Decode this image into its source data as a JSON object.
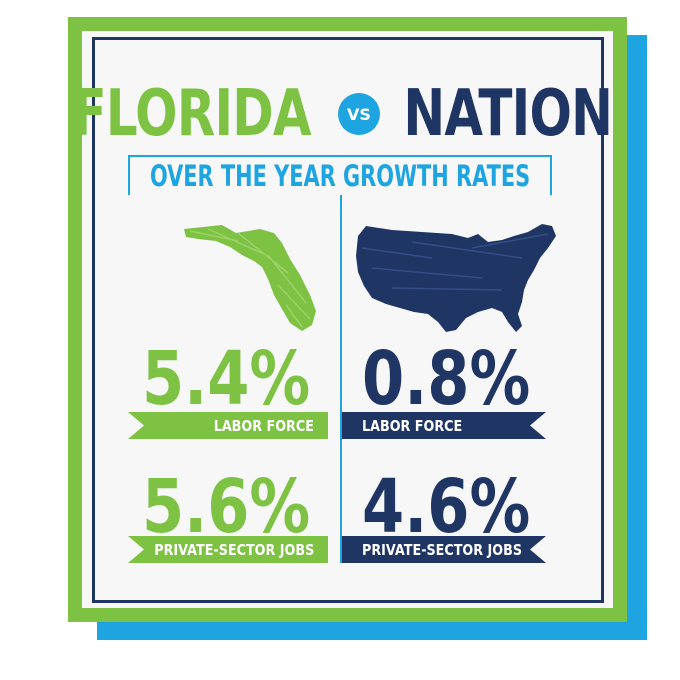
{
  "title": {
    "left": "FLORIDA",
    "vs": "VS",
    "right": "NATION"
  },
  "subtitle": "OVER THE YEAR GROWTH RATES",
  "florida": {
    "labor_force_pct": "5.4%",
    "labor_force_label": "LABOR FORCE",
    "jobs_pct": "5.6%",
    "jobs_label": "PRIVATE-SECTOR JOBS"
  },
  "nation": {
    "labor_force_pct": "0.8%",
    "labor_force_label": "LABOR FORCE",
    "jobs_pct": "4.6%",
    "jobs_label": "PRIVATE-SECTOR JOBS"
  },
  "colors": {
    "florida_green": "#7dc242",
    "nation_navy": "#1f3664",
    "accent_blue": "#1ea4e0"
  }
}
